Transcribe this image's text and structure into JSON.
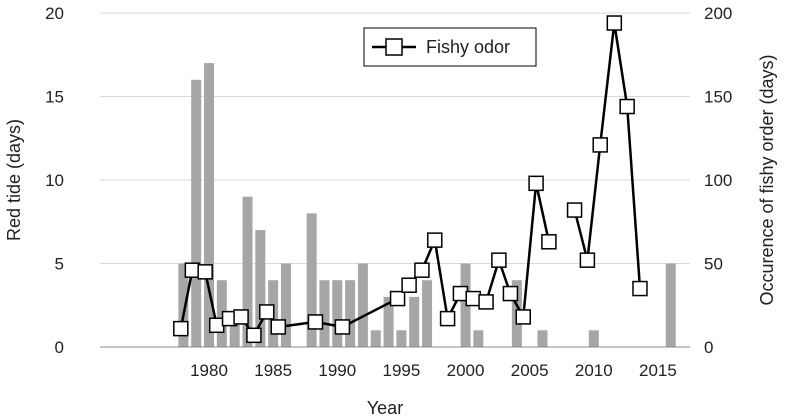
{
  "chart_data": {
    "type": "bar+line",
    "xlabel": "Year",
    "ylabel_left": "Red tide (days)",
    "ylabel_right": "Occurence of fishy order (days)",
    "xlim": [
      1971.5,
      2017.5
    ],
    "ylim_left": [
      0,
      20
    ],
    "ylim_right": [
      0,
      200
    ],
    "x_ticks": [
      1980,
      1985,
      1990,
      1995,
      2000,
      2005,
      2010,
      2015
    ],
    "y_left_ticks": [
      0,
      5,
      10,
      15,
      20
    ],
    "y_right_ticks": [
      0,
      50,
      100,
      150,
      200
    ],
    "grid": "horizontal",
    "legend_position": "top-center",
    "bar_color": "#a6a6a6",
    "line_color": "#000000",
    "bars": {
      "x": [
        1978,
        1979,
        1980,
        1981,
        1982,
        1983,
        1984,
        1985,
        1986,
        1988,
        1989,
        1990,
        1991,
        1992,
        1993,
        1994,
        1995,
        1996,
        1997,
        2000,
        2001,
        2004,
        2006,
        2010,
        2016
      ],
      "values": [
        5,
        16,
        17,
        4,
        2,
        9,
        7,
        4,
        5,
        8,
        4,
        4,
        4,
        5,
        1,
        3,
        1,
        3,
        4,
        5,
        1,
        4,
        1,
        1,
        5
      ]
    },
    "series": [
      {
        "name": "Fishy odor",
        "segments": [
          {
            "x": [
              1977.8,
              1978.7,
              1979.7,
              1980.6,
              1981.6,
              1982.5,
              1983.5,
              1984.5,
              1985.4,
              1988.3,
              1990.4,
              1994.7,
              1995.6,
              1996.6,
              1997.6,
              1998.6,
              1999.6,
              2000.6,
              2001.6,
              2002.6,
              2003.5,
              2004.5,
              2005.5,
              2006.5
            ],
            "values": [
              11,
              46,
              45,
              13,
              17,
              18,
              7,
              21,
              12,
              15,
              12,
              29,
              37,
              46,
              64,
              17,
              32,
              29,
              27,
              52,
              32,
              18,
              98,
              63
            ]
          },
          {
            "x": [
              2008.5,
              2009.5,
              2010.5,
              2011.6,
              2012.6,
              2013.6
            ],
            "values": [
              82,
              52,
              121,
              194,
              144,
              35
            ]
          }
        ]
      }
    ]
  }
}
